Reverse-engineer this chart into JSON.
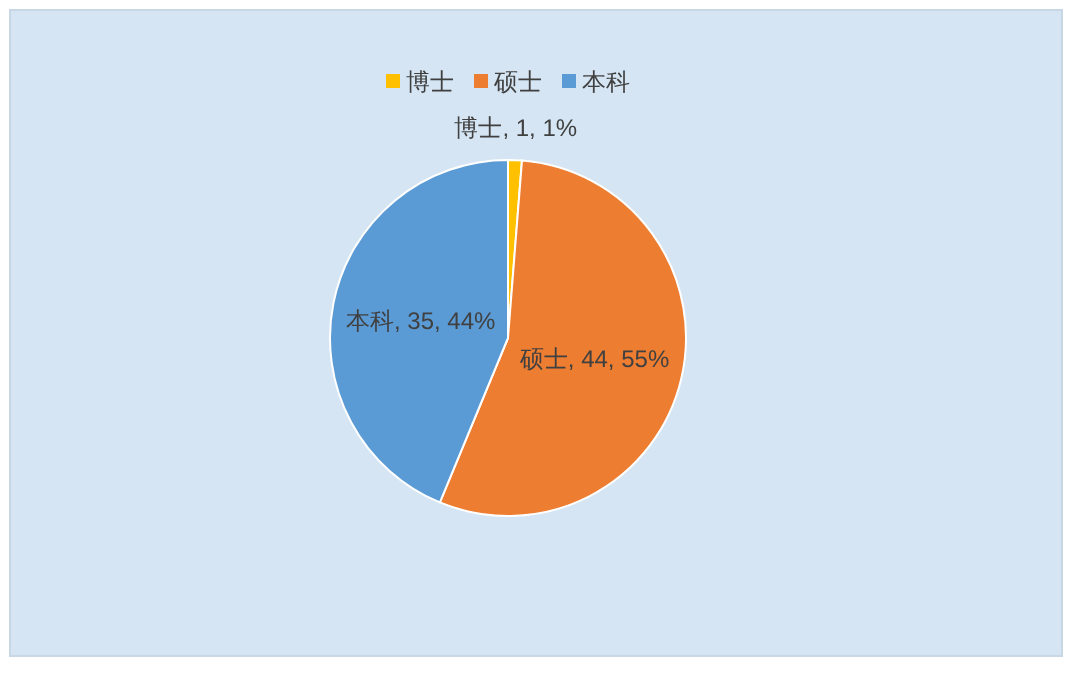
{
  "chart_data": {
    "type": "pie",
    "categories": [
      "博士",
      "硕士",
      "本科"
    ],
    "values": [
      1,
      44,
      35
    ],
    "colors": [
      "#ffc000",
      "#ed7d31",
      "#5b9bd5"
    ],
    "value_labels": [
      "博士, 1, 1%",
      "硕士, 44, 55%",
      "本科, 35, 44%"
    ],
    "legend": "top"
  }
}
